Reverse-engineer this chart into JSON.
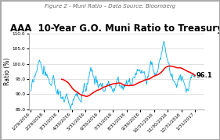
{
  "title": "AAA  10-Year G.O. Muni Ratio to Treasury",
  "subtitle": "Figure 2 - Muni Ratio – Data Source: Bloomberg",
  "ylabel": "Ratio (%)",
  "ylim": [
    85.0,
    110.0
  ],
  "yticks": [
    85.0,
    90.0,
    95.0,
    100.0,
    105.0,
    110.0
  ],
  "x_labels": [
    "1/29/2016",
    "2/29/2016",
    "3/31/2016",
    "4/30/2016",
    "5/31/2016",
    "6/30/2016",
    "7/31/2016",
    "8/31/2016",
    "9/30/2016",
    "10/31/2016",
    "11/30/2016",
    "12/31/2016",
    "1/31/2017"
  ],
  "mid_price_color": "#00AEEF",
  "smavg_color": "#FF0000",
  "annotation": "96.1",
  "annotation_color": "#000000",
  "background_color": "#FFFFFF",
  "plot_bg_color": "#FFFFFF",
  "grid_color": "#CCCCCC",
  "border_color": "#AAAAAA",
  "title_fontsize": 8.5,
  "subtitle_fontsize": 5.0,
  "ylabel_fontsize": 5.5,
  "tick_fontsize": 4.2,
  "legend_fontsize": 5.0,
  "mid_price": [
    90.0,
    91.0,
    92.5,
    93.5,
    93.0,
    94.5,
    95.5,
    96.0,
    96.5,
    97.0,
    97.5,
    98.5,
    99.5,
    100.5,
    101.0,
    100.5,
    99.5,
    99.0,
    98.5,
    97.5,
    98.0,
    99.0,
    97.5,
    96.5,
    96.0,
    97.0,
    96.5,
    95.5,
    94.5,
    94.0,
    93.5,
    93.0,
    93.5,
    94.0,
    94.5,
    95.0,
    95.5,
    94.5,
    93.5,
    92.5,
    92.0,
    91.5,
    91.0,
    90.5,
    90.0,
    91.0,
    91.5,
    90.5,
    89.5,
    89.0,
    89.0,
    89.0,
    88.5,
    88.0,
    88.0,
    89.0,
    89.5,
    90.0,
    89.5,
    88.5,
    87.5,
    87.0,
    86.5,
    86.0,
    86.0,
    87.0,
    87.5,
    88.0,
    88.5,
    88.5,
    89.0,
    89.5,
    89.5,
    90.0,
    90.5,
    89.5,
    89.0,
    88.5,
    88.0,
    87.5,
    88.0,
    89.0,
    90.5,
    91.5,
    92.0,
    92.5,
    91.5,
    91.0,
    92.0,
    93.0,
    93.5,
    94.5,
    95.5,
    96.5,
    97.5,
    98.5,
    97.5,
    97.0,
    96.5,
    95.5,
    94.5,
    94.0,
    95.0,
    95.5,
    94.5,
    93.5,
    93.0,
    92.5,
    92.0,
    92.0,
    92.5,
    92.5,
    93.0,
    92.5,
    91.5,
    90.5,
    90.5,
    91.0,
    91.5,
    92.0,
    93.0,
    93.5,
    93.5,
    93.5,
    93.0,
    93.5,
    92.5,
    91.5,
    91.5,
    91.0,
    91.0,
    91.5,
    91.5,
    92.0,
    92.5,
    93.5,
    94.5,
    95.0,
    95.5,
    94.5,
    93.5,
    92.5,
    92.5,
    91.5,
    91.5,
    91.5,
    92.0,
    92.5,
    93.0,
    93.5,
    93.5,
    93.5,
    93.5,
    94.0,
    94.5,
    94.5,
    94.5,
    93.5,
    93.5,
    93.5,
    93.5,
    94.0,
    95.0,
    95.5,
    96.0,
    96.5,
    97.0,
    97.5,
    97.5,
    97.5,
    97.5,
    97.5,
    97.5,
    97.5,
    97.5,
    97.5,
    97.5,
    97.5,
    97.5,
    97.5,
    96.5,
    95.5,
    94.5,
    94.5,
    95.5,
    96.5,
    97.5,
    98.5,
    99.5,
    100.0,
    100.5,
    100.5,
    99.5,
    98.5,
    97.5,
    96.5,
    96.5,
    95.5,
    95.5,
    96.5,
    97.5,
    98.5,
    99.5,
    100.5,
    101.5,
    102.5,
    103.5,
    104.5,
    105.5,
    106.5,
    107.0,
    106.0,
    105.0,
    104.0,
    103.0,
    102.0,
    101.0,
    100.0,
    99.0,
    98.0,
    97.0,
    96.5,
    96.0,
    96.5,
    95.5,
    94.5,
    94.0,
    94.0,
    93.5,
    93.5,
    93.0,
    93.5,
    94.5,
    95.0,
    95.5,
    95.5,
    95.5,
    95.5,
    95.5,
    95.5,
    95.0,
    94.5,
    93.5,
    93.0,
    92.5,
    91.5,
    91.0,
    91.0,
    91.5,
    92.5,
    93.5,
    94.5,
    95.5,
    95.5,
    96.0,
    96.5,
    96.5,
    96.5,
    96.5,
    96.1
  ]
}
